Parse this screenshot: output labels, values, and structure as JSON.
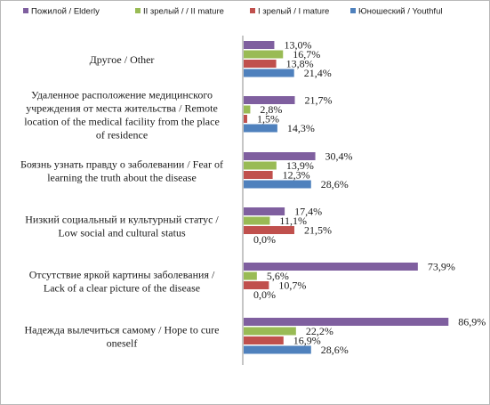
{
  "chart_data": {
    "type": "bar",
    "orientation": "horizontal",
    "legend_position": "top",
    "grid": false,
    "xlim": [
      0,
      100
    ],
    "categories": [
      [
        "Другое / Other"
      ],
      [
        "Удаленное расположение медицинского",
        "учреждения от места жительства / Remote",
        "location  of the medical  facility  from  the place",
        "of residence"
      ],
      [
        "Боязнь узнать правду о заболевании / Fear of",
        "learning  the truth about the disease"
      ],
      [
        "Низкий социальный и культурный  статус /",
        "Low social  and cultural  status"
      ],
      [
        "Отсутствие яркой картины заболевания /",
        "Lack of a clear picture  of the disease"
      ],
      [
        "Надежда вылечиться самому / Hope to cure",
        "oneself"
      ]
    ],
    "series": [
      {
        "name": "Пожилой / Elderly",
        "color": "#7f5f9f",
        "values": [
          13.0,
          21.7,
          30.4,
          17.4,
          73.9,
          86.9
        ],
        "labels": [
          "13,0%",
          "21,7%",
          "30,4%",
          "17,4%",
          "73,9%",
          "86,9%"
        ]
      },
      {
        "name": "II зрелый / / II mature",
        "color": "#99bb55",
        "values": [
          16.7,
          2.8,
          13.9,
          11.1,
          5.6,
          22.2
        ],
        "labels": [
          "16,7%",
          "2,8%",
          "13,9%",
          "11,1%",
          "5,6%",
          "22,2%"
        ]
      },
      {
        "name": "I зрелый / I mature",
        "color": "#c0504d",
        "values": [
          13.8,
          1.5,
          12.3,
          21.5,
          10.7,
          16.9
        ],
        "labels": [
          "13,8%",
          "1,5%",
          "12,3%",
          "21,5%",
          "10,7%",
          "16,9%"
        ]
      },
      {
        "name": "Юношеский / Youthful",
        "color": "#4f81bd",
        "values": [
          21.4,
          14.3,
          28.6,
          0.0,
          0.0,
          28.6
        ],
        "labels": [
          "21,4%",
          "14,3%",
          "28,6%",
          "0,0%",
          "0,0%",
          "28,6%"
        ]
      }
    ]
  }
}
